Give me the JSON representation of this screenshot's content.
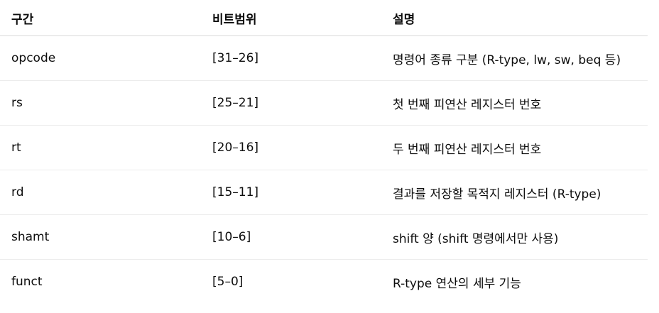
{
  "table": {
    "headers": [
      "구간",
      "비트범위",
      "설명"
    ],
    "rows": [
      [
        "opcode",
        "[31–26]",
        "명령어 종류 구분 (R-type, lw, sw, beq 등)"
      ],
      [
        "rs",
        "[25–21]",
        "첫 번째 피연산 레지스터 번호"
      ],
      [
        "rt",
        "[20–16]",
        "두 번째 피연산 레지스터 번호"
      ],
      [
        "rd",
        "[15–11]",
        "결과를 저장할 목적지 레지스터 (R-type)"
      ],
      [
        "shamt",
        "[10–6]",
        "shift 양 (shift 명령에서만 사용)"
      ],
      [
        "funct",
        "[5–0]",
        "R-type 연산의 세부 기능"
      ]
    ]
  }
}
